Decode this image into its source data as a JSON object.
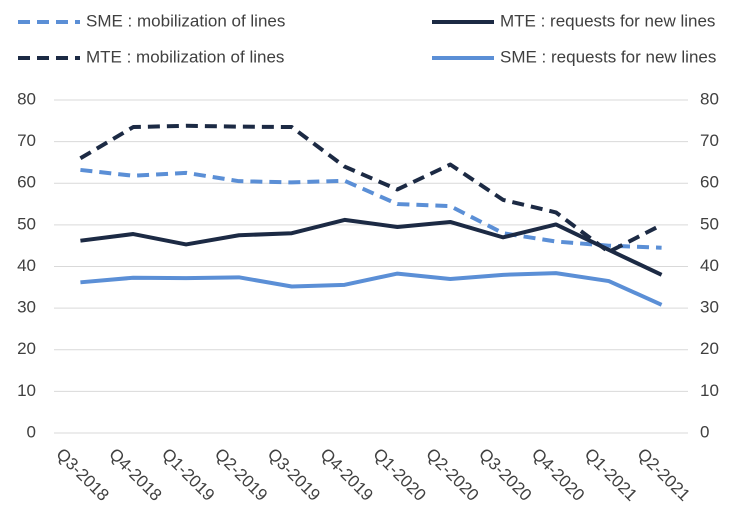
{
  "chart_data": {
    "type": "line",
    "categories": [
      "Q3-2018",
      "Q4-2018",
      "Q1-2019",
      "Q2-2019",
      "Q3-2019",
      "Q4-2019",
      "Q1-2020",
      "Q2-2020",
      "Q3-2020",
      "Q4-2020",
      "Q1-2021",
      "Q2-2021"
    ],
    "series": [
      {
        "name": "SME : mobilization of lines",
        "color": "#5b8fd6",
        "dashed": true,
        "values": [
          63.2,
          61.8,
          62.5,
          60.5,
          60.2,
          60.6,
          55,
          54.5,
          48,
          46,
          45,
          44.5
        ]
      },
      {
        "name": "MTE : requests for new lines",
        "color": "#1c2a44",
        "dashed": false,
        "values": [
          46.2,
          47.8,
          45.3,
          47.5,
          48,
          51.2,
          49.5,
          50.7,
          47,
          50.1,
          44,
          38
        ]
      },
      {
        "name": "MTE : mobilization of lines",
        "color": "#1c2a44",
        "dashed": true,
        "values": [
          66,
          73.5,
          73.8,
          73.6,
          73.5,
          64,
          58.5,
          64.5,
          56,
          53,
          43.5,
          50
        ]
      },
      {
        "name": "SME : requests for new lines",
        "color": "#5b8fd6",
        "dashed": false,
        "values": [
          36.2,
          37.3,
          37.2,
          37.4,
          35.2,
          35.6,
          38.3,
          37,
          38,
          38.4,
          36.5,
          30.8
        ]
      }
    ],
    "ylim": [
      0,
      80
    ],
    "yticks": [
      0,
      10,
      20,
      30,
      40,
      50,
      60,
      70,
      80
    ],
    "y2lim": [
      0,
      80
    ],
    "y2ticks": [
      0,
      10,
      20,
      30,
      40,
      50,
      60,
      70,
      80
    ],
    "grid": true,
    "legend": "top"
  }
}
